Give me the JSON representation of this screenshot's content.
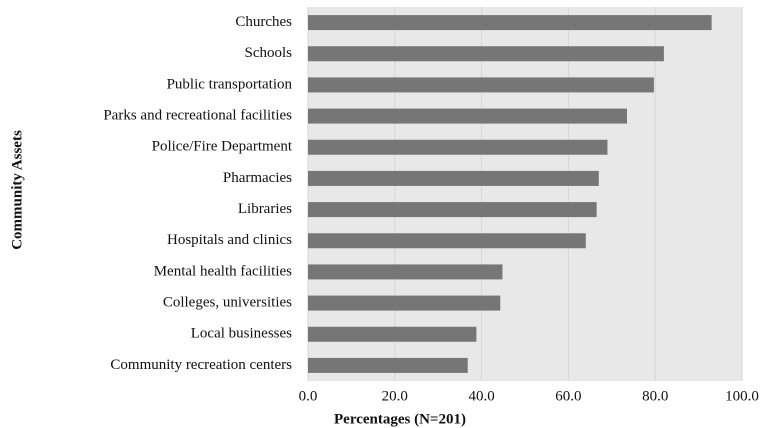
{
  "chart_data": {
    "type": "barh",
    "categories": [
      "Churches",
      "Schools",
      "Public transportation",
      "Parks and recreational facilities",
      "Police/Fire Department",
      "Pharmacies",
      "Libraries",
      "Hospitals and clinics",
      "Mental health facilities",
      "Colleges, universities",
      "Local businesses",
      "Community recreation centers"
    ],
    "values": [
      93,
      82,
      79.7,
      73.5,
      69,
      67,
      66.5,
      64,
      44.8,
      44.3,
      38.8,
      36.8
    ],
    "color": "#767676",
    "xlabel": "Percentages (N=201)",
    "ylabel": "Community Assets",
    "xlim": [
      0,
      100
    ],
    "xticks": [
      {
        "value": 0,
        "label": "0.0"
      },
      {
        "value": 20,
        "label": "20.0"
      },
      {
        "value": 40,
        "label": "40.0"
      },
      {
        "value": 60,
        "label": "60.0"
      },
      {
        "value": 80,
        "label": "80.0"
      },
      {
        "value": 100,
        "label": "100.0"
      }
    ],
    "grid": true
  }
}
